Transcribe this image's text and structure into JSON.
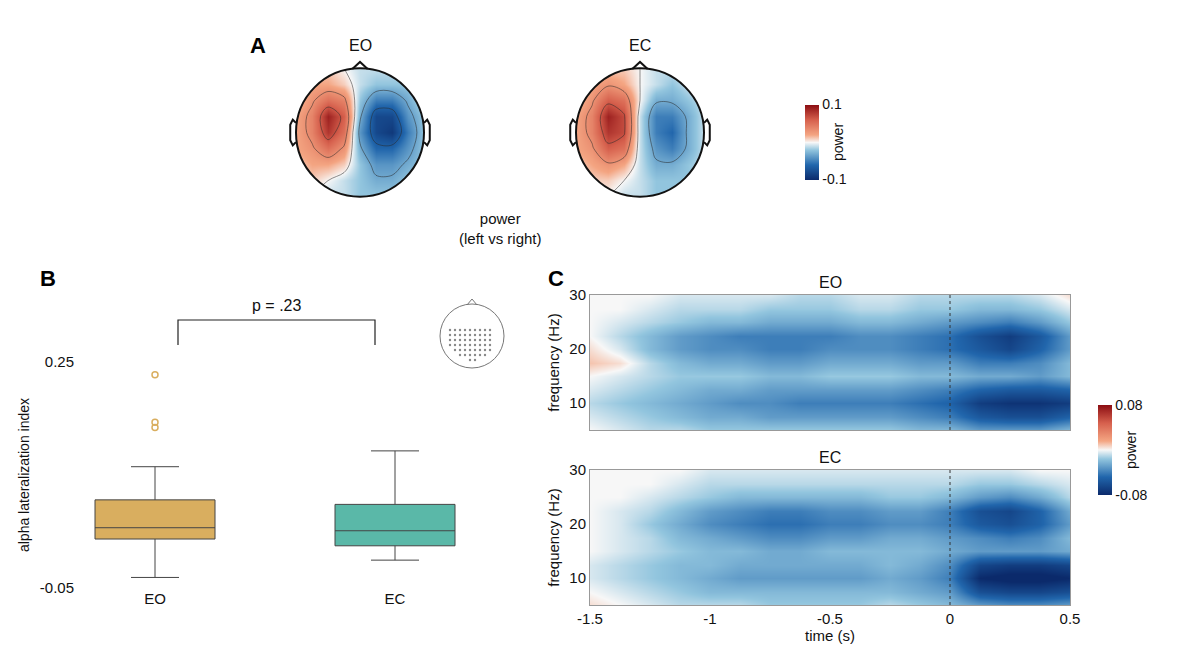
{
  "chart_data": [
    {
      "panel": "A",
      "type": "topoplot",
      "caption": "power\n(left vs right)",
      "tick_labels": false,
      "xlim": [
        -1.25,
        1.25
      ],
      "ylim": [
        -1.13,
        1.13
      ],
      "x": [
        -1,
        -0.75,
        -0.5,
        -0.25,
        0,
        0.25,
        0.5,
        0.75,
        1
      ],
      "y": [
        -1,
        -0.75,
        -0.5,
        -0.25,
        0,
        0.25,
        0.5,
        0.75,
        1
      ],
      "colorbar": {
        "zlim": [
          -0.1,
          0.1
        ],
        "ticks": [
          -0.1,
          0.1
        ],
        "title": "power"
      },
      "maps": [
        {
          "title": "EO",
          "z": [
            [
              0.0,
              0.0,
              -0.01,
              -0.01,
              -0.02,
              -0.02,
              -0.02,
              -0.02,
              -0.01
            ],
            [
              0.01,
              0.01,
              0.0,
              -0.01,
              -0.02,
              -0.03,
              -0.03,
              -0.02,
              -0.02
            ],
            [
              0.01,
              0.02,
              0.02,
              0.01,
              -0.02,
              -0.04,
              -0.04,
              -0.03,
              -0.02
            ],
            [
              0.02,
              0.03,
              0.05,
              0.03,
              -0.03,
              -0.06,
              -0.06,
              -0.04,
              -0.02
            ],
            [
              0.02,
              0.04,
              0.08,
              0.05,
              -0.04,
              -0.08,
              -0.09,
              -0.05,
              -0.02
            ],
            [
              0.02,
              0.04,
              0.09,
              0.06,
              -0.03,
              -0.08,
              -0.08,
              -0.04,
              -0.02
            ],
            [
              0.01,
              0.03,
              0.05,
              0.04,
              -0.02,
              -0.05,
              -0.05,
              -0.03,
              -0.01
            ],
            [
              0.01,
              0.02,
              0.02,
              0.01,
              -0.01,
              -0.02,
              -0.02,
              -0.02,
              -0.01
            ],
            [
              0.0,
              0.01,
              0.01,
              0.0,
              -0.01,
              -0.01,
              -0.01,
              -0.01,
              0.0
            ]
          ]
        },
        {
          "title": "EC",
          "z": [
            [
              0.0,
              0.0,
              0.0,
              -0.01,
              -0.01,
              -0.02,
              -0.02,
              -0.01,
              -0.01
            ],
            [
              0.01,
              0.01,
              0.01,
              0.0,
              -0.01,
              -0.02,
              -0.02,
              -0.02,
              -0.01
            ],
            [
              0.01,
              0.02,
              0.03,
              0.02,
              -0.01,
              -0.03,
              -0.03,
              -0.02,
              -0.01
            ],
            [
              0.02,
              0.03,
              0.06,
              0.05,
              -0.01,
              -0.04,
              -0.05,
              -0.03,
              -0.01
            ],
            [
              0.02,
              0.04,
              0.08,
              0.07,
              -0.01,
              -0.05,
              -0.06,
              -0.03,
              -0.01
            ],
            [
              0.02,
              0.04,
              0.09,
              0.07,
              -0.01,
              -0.05,
              -0.05,
              -0.03,
              -0.01
            ],
            [
              0.01,
              0.03,
              0.06,
              0.05,
              0.0,
              -0.03,
              -0.03,
              -0.02,
              -0.01
            ],
            [
              0.01,
              0.02,
              0.03,
              0.02,
              0.0,
              -0.01,
              -0.02,
              -0.01,
              -0.01
            ],
            [
              0.0,
              0.01,
              0.01,
              0.01,
              0.0,
              -0.01,
              -0.01,
              -0.01,
              0.0
            ]
          ]
        }
      ]
    },
    {
      "panel": "B",
      "type": "box",
      "categories": [
        "EO",
        "EC"
      ],
      "ylabel": "alpha lateralization index",
      "ylim": [
        -0.05,
        0.25
      ],
      "yticks": [
        -0.05,
        0.25
      ],
      "grid": false,
      "annotations": [
        {
          "text": "p = .23"
        }
      ],
      "boxes": [
        {
          "category": "EO",
          "color": "#d9ae5f",
          "q1": 0.015,
          "median": 0.03,
          "q3": 0.067,
          "whisker_low": -0.036,
          "whisker_high": 0.111,
          "outliers": [
            0.233,
            0.17,
            0.163
          ],
          "marker": "circle-open"
        },
        {
          "category": "EC",
          "color": "#5ab8a8",
          "q1": 0.006,
          "median": 0.026,
          "q3": 0.061,
          "whisker_low": -0.013,
          "whisker_high": 0.132,
          "outliers": [],
          "marker": "circle-open"
        }
      ]
    },
    {
      "panel": "C",
      "type": "heatmap",
      "xlabel": "time (s)",
      "ylabel": "frequency (Hz)",
      "xlim": [
        -1.5,
        0.5
      ],
      "ylim": [
        5,
        30
      ],
      "xticks": [
        -1.5,
        -1,
        -0.5,
        0,
        0.5
      ],
      "yticks": [
        10,
        20,
        30
      ],
      "vline": 0,
      "x": [
        -1.5,
        -1.375,
        -1.25,
        -1.125,
        -1,
        -0.875,
        -0.75,
        -0.625,
        -0.5,
        -0.375,
        -0.25,
        -0.125,
        0,
        0.125,
        0.25,
        0.375,
        0.5
      ],
      "y": [
        5,
        7.5,
        10,
        12.5,
        15,
        17.5,
        20,
        22.5,
        25,
        27.5,
        30
      ],
      "colorbar": {
        "zlim": [
          -0.08,
          0.08
        ],
        "ticks": [
          -0.08,
          0.08
        ],
        "title": "power"
      },
      "maps": [
        {
          "title": "EO",
          "tick_labels": "y",
          "z": [
            [
              0.0,
              -0.005,
              -0.01,
              -0.01,
              -0.015,
              -0.015,
              -0.015,
              -0.015,
              -0.015,
              -0.015,
              -0.015,
              -0.02,
              -0.02,
              -0.03,
              -0.03,
              -0.03,
              -0.02
            ],
            [
              -0.005,
              -0.01,
              -0.015,
              -0.02,
              -0.025,
              -0.025,
              -0.03,
              -0.03,
              -0.03,
              -0.03,
              -0.03,
              -0.035,
              -0.04,
              -0.055,
              -0.06,
              -0.06,
              -0.05
            ],
            [
              -0.01,
              -0.015,
              -0.02,
              -0.025,
              -0.03,
              -0.035,
              -0.035,
              -0.04,
              -0.04,
              -0.04,
              -0.04,
              -0.045,
              -0.05,
              -0.07,
              -0.075,
              -0.075,
              -0.07
            ],
            [
              -0.005,
              -0.01,
              -0.015,
              -0.02,
              -0.025,
              -0.025,
              -0.03,
              -0.03,
              -0.03,
              -0.03,
              -0.03,
              -0.035,
              -0.04,
              -0.05,
              -0.055,
              -0.055,
              -0.05
            ],
            [
              0.0,
              -0.005,
              -0.01,
              -0.015,
              -0.015,
              -0.015,
              -0.02,
              -0.02,
              -0.015,
              -0.015,
              -0.015,
              -0.02,
              -0.02,
              -0.025,
              -0.025,
              -0.03,
              -0.02
            ],
            [
              0.01,
              0.005,
              -0.01,
              -0.02,
              -0.025,
              -0.025,
              -0.03,
              -0.03,
              -0.025,
              -0.025,
              -0.025,
              -0.03,
              -0.03,
              -0.04,
              -0.04,
              -0.035,
              -0.02
            ],
            [
              0.005,
              -0.005,
              -0.02,
              -0.03,
              -0.035,
              -0.035,
              -0.04,
              -0.04,
              -0.035,
              -0.035,
              -0.035,
              -0.04,
              -0.045,
              -0.055,
              -0.065,
              -0.05,
              -0.03
            ],
            [
              0.0,
              -0.01,
              -0.02,
              -0.03,
              -0.035,
              -0.04,
              -0.04,
              -0.04,
              -0.04,
              -0.035,
              -0.035,
              -0.04,
              -0.045,
              -0.06,
              -0.07,
              -0.055,
              -0.03
            ],
            [
              0.0,
              -0.005,
              -0.01,
              -0.015,
              -0.02,
              -0.02,
              -0.025,
              -0.025,
              -0.025,
              -0.02,
              -0.02,
              -0.025,
              -0.03,
              -0.035,
              -0.04,
              -0.03,
              -0.015
            ],
            [
              0.0,
              0.0,
              -0.005,
              -0.01,
              -0.01,
              -0.01,
              -0.015,
              -0.015,
              -0.015,
              -0.01,
              -0.01,
              -0.015,
              -0.015,
              -0.02,
              -0.02,
              -0.015,
              -0.005
            ],
            [
              0.0,
              0.0,
              0.0,
              -0.005,
              -0.005,
              -0.005,
              -0.005,
              -0.01,
              -0.01,
              -0.005,
              -0.005,
              -0.01,
              -0.01,
              -0.01,
              -0.01,
              -0.005,
              0.005
            ]
          ]
        },
        {
          "title": "EC",
          "z": [
            [
              0.005,
              0.0,
              -0.005,
              -0.01,
              -0.01,
              -0.01,
              -0.015,
              -0.015,
              -0.015,
              -0.015,
              -0.01,
              -0.015,
              -0.02,
              -0.03,
              -0.035,
              -0.035,
              -0.03
            ],
            [
              0.0,
              -0.005,
              -0.01,
              -0.015,
              -0.02,
              -0.02,
              -0.02,
              -0.02,
              -0.02,
              -0.02,
              -0.02,
              -0.025,
              -0.03,
              -0.06,
              -0.065,
              -0.065,
              -0.06
            ],
            [
              -0.005,
              -0.01,
              -0.015,
              -0.02,
              -0.025,
              -0.03,
              -0.03,
              -0.03,
              -0.03,
              -0.03,
              -0.025,
              -0.03,
              -0.04,
              -0.08,
              -0.085,
              -0.085,
              -0.08
            ],
            [
              -0.005,
              -0.01,
              -0.015,
              -0.02,
              -0.02,
              -0.025,
              -0.025,
              -0.025,
              -0.025,
              -0.025,
              -0.02,
              -0.025,
              -0.035,
              -0.065,
              -0.07,
              -0.07,
              -0.065
            ],
            [
              0.0,
              -0.005,
              -0.01,
              -0.015,
              -0.02,
              -0.02,
              -0.025,
              -0.025,
              -0.02,
              -0.02,
              -0.02,
              -0.02,
              -0.025,
              -0.03,
              -0.03,
              -0.03,
              -0.025
            ],
            [
              0.0,
              -0.005,
              -0.01,
              -0.02,
              -0.025,
              -0.03,
              -0.035,
              -0.035,
              -0.03,
              -0.03,
              -0.025,
              -0.025,
              -0.03,
              -0.035,
              -0.04,
              -0.035,
              -0.02
            ],
            [
              0.0,
              -0.005,
              -0.015,
              -0.025,
              -0.035,
              -0.04,
              -0.045,
              -0.045,
              -0.04,
              -0.04,
              -0.035,
              -0.035,
              -0.04,
              -0.055,
              -0.06,
              -0.05,
              -0.03
            ],
            [
              0.0,
              -0.005,
              -0.01,
              -0.02,
              -0.03,
              -0.035,
              -0.04,
              -0.04,
              -0.035,
              -0.035,
              -0.03,
              -0.03,
              -0.04,
              -0.06,
              -0.065,
              -0.05,
              -0.025
            ],
            [
              0.0,
              0.0,
              -0.005,
              -0.01,
              -0.015,
              -0.02,
              -0.02,
              -0.02,
              -0.02,
              -0.02,
              -0.015,
              -0.015,
              -0.02,
              -0.03,
              -0.035,
              -0.025,
              -0.01
            ],
            [
              0.0,
              0.0,
              0.0,
              -0.005,
              -0.01,
              -0.01,
              -0.01,
              -0.01,
              -0.01,
              -0.01,
              -0.01,
              -0.01,
              -0.01,
              -0.015,
              -0.015,
              -0.01,
              -0.005
            ],
            [
              0.0,
              0.0,
              0.0,
              0.0,
              -0.005,
              -0.005,
              -0.005,
              -0.005,
              -0.005,
              -0.005,
              -0.005,
              -0.005,
              -0.005,
              -0.005,
              -0.005,
              0.0,
              0.0
            ]
          ]
        }
      ]
    }
  ]
}
